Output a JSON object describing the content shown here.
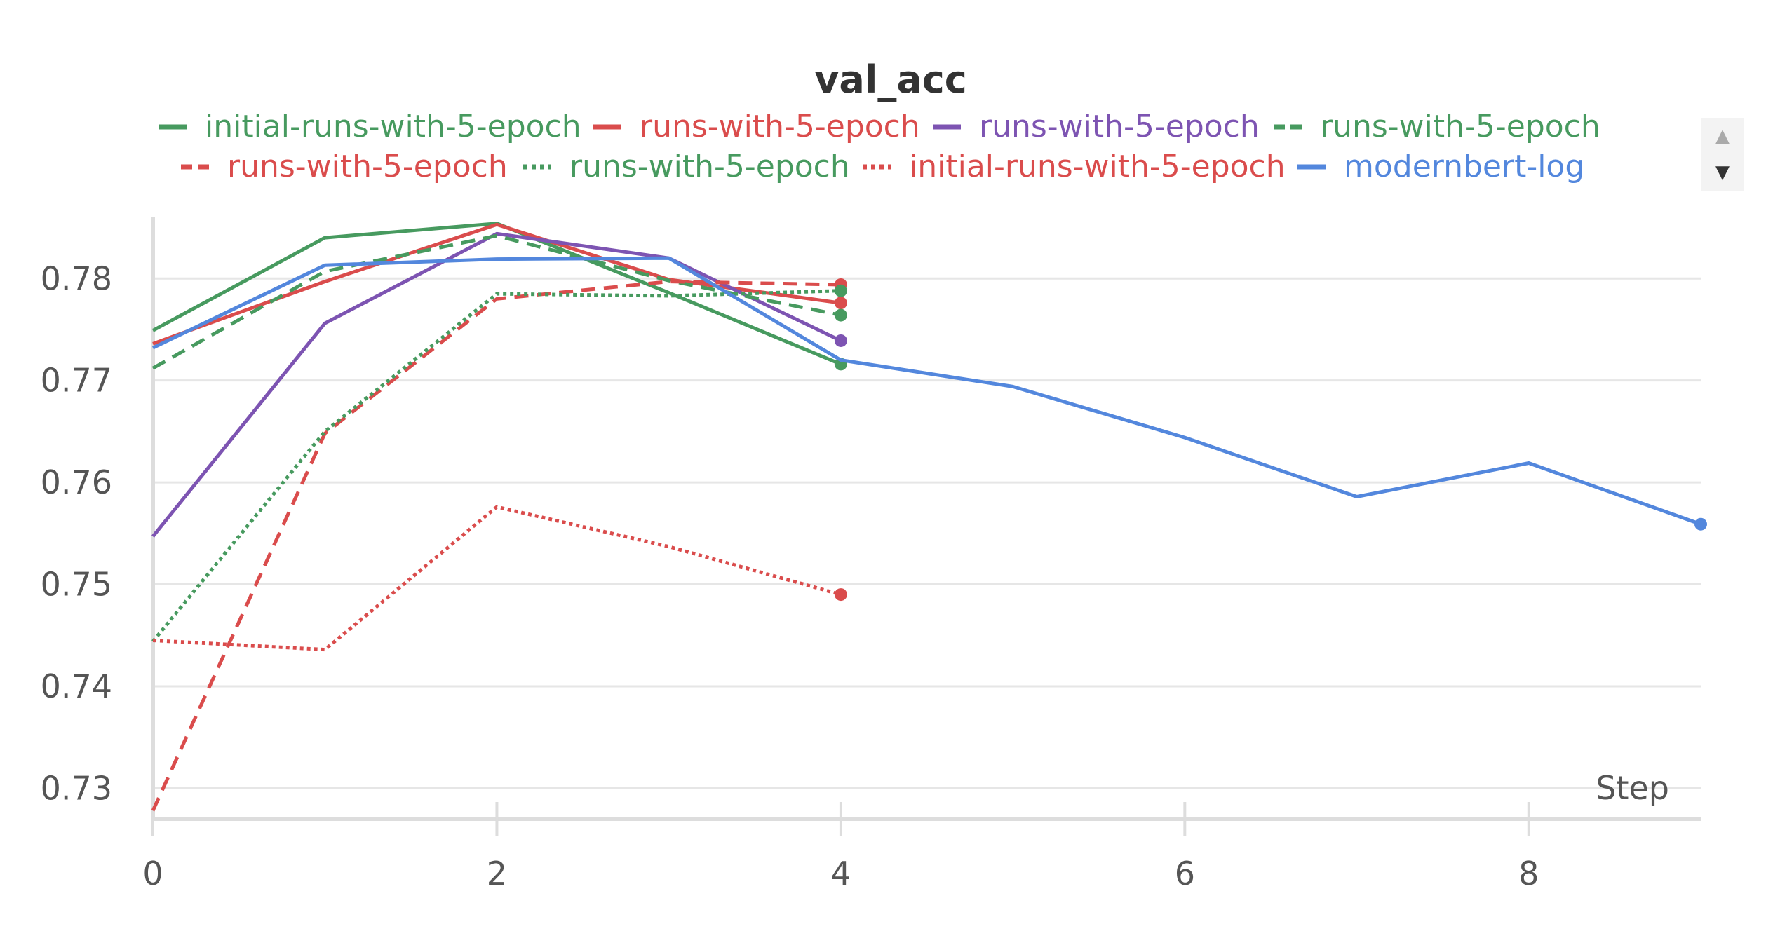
{
  "chart_data": {
    "type": "line",
    "title": "val_acc",
    "xlabel": "Step",
    "ylabel": "",
    "xlim": [
      0,
      9
    ],
    "ylim": [
      0.727,
      0.786
    ],
    "x_ticks": [
      0,
      2,
      4,
      6,
      8
    ],
    "y_ticks": [
      0.73,
      0.74,
      0.75,
      0.76,
      0.77,
      0.78
    ],
    "x_tick_labels": [
      "0",
      "2",
      "4",
      "6",
      "8"
    ],
    "y_tick_labels": [
      "0.73",
      "0.74",
      "0.75",
      "0.76",
      "0.77",
      "0.78"
    ],
    "grid": true,
    "legend_position": "top",
    "series": [
      {
        "name": "initial-runs-with-5-epoch",
        "color": "#479A5F",
        "style": "solid",
        "x": [
          0,
          1,
          2,
          3,
          4
        ],
        "y": [
          0.7749,
          0.784,
          0.7854,
          0.7786,
          0.7716
        ]
      },
      {
        "name": "runs-with-5-epoch",
        "color": "#DA4C4C",
        "style": "solid",
        "x": [
          0,
          1,
          2,
          3,
          4
        ],
        "y": [
          0.7736,
          0.7797,
          0.7853,
          0.7799,
          0.7776
        ]
      },
      {
        "name": "runs-with-5-epoch",
        "color": "#7D54B2",
        "style": "solid",
        "x": [
          0,
          1,
          2,
          3,
          4
        ],
        "y": [
          0.7547,
          0.7756,
          0.7844,
          0.782,
          0.7739
        ]
      },
      {
        "name": "runs-with-5-epoch",
        "color": "#479A5F",
        "style": "dashed",
        "x": [
          0,
          1,
          2,
          3,
          4
        ],
        "y": [
          0.7712,
          0.7807,
          0.7842,
          0.7798,
          0.7764
        ]
      },
      {
        "name": "runs-with-5-epoch",
        "color": "#DA4C4C",
        "style": "dashed",
        "x": [
          0,
          1,
          2,
          3,
          4
        ],
        "y": [
          0.7278,
          0.7648,
          0.778,
          0.7797,
          0.7794
        ]
      },
      {
        "name": "runs-with-5-epoch",
        "color": "#479A5F",
        "style": "dotted",
        "x": [
          0,
          1,
          2,
          3,
          4
        ],
        "y": [
          0.7444,
          0.765,
          0.7785,
          0.7783,
          0.7788
        ]
      },
      {
        "name": "initial-runs-with-5-epoch",
        "color": "#DA4C4C",
        "style": "dotted",
        "x": [
          0,
          1,
          2,
          3,
          4
        ],
        "y": [
          0.7445,
          0.7436,
          0.7576,
          0.7537,
          0.749
        ]
      },
      {
        "name": "modernbert-log",
        "color": "#5387DD",
        "style": "solid",
        "x": [
          0,
          1,
          2,
          3,
          4,
          5,
          6,
          7,
          8,
          9
        ],
        "y": [
          0.7732,
          0.7813,
          0.7819,
          0.782,
          0.772,
          0.7694,
          0.7644,
          0.7586,
          0.7619,
          0.7559
        ]
      }
    ]
  },
  "legend": {
    "scroll_up_icon": "triangle-up-icon",
    "scroll_down_icon": "triangle-down-icon"
  }
}
